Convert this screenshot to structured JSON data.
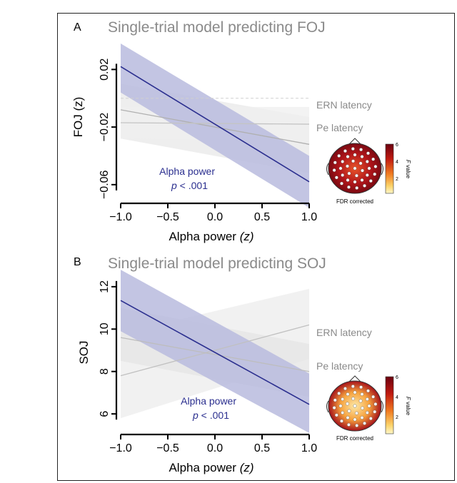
{
  "chart_data": [
    {
      "panel": "A",
      "type": "line",
      "title": "Single-trial model predicting FOJ",
      "xlabel_main": "Alpha power ",
      "xlabel_italic": "(z)",
      "ylabel": "FOJ (z)",
      "xlim": [
        -1.0,
        1.0
      ],
      "ylim": [
        -0.07,
        0.04
      ],
      "x_ticks": [
        -1.0,
        -0.5,
        0.0,
        0.5,
        1.0
      ],
      "x_tick_labels": [
        "−1.0",
        "−0.5",
        "0.0",
        "0.5",
        "1.0"
      ],
      "y_ticks": [
        0.02,
        -0.02,
        -0.06
      ],
      "y_tick_labels": [
        "0.02",
        "−0.02",
        "−0.06"
      ],
      "reference_line_y": 0.0,
      "series": [
        {
          "name": "Alpha power",
          "color": "#2b2f8f",
          "band": "#b9bbde",
          "x": [
            -1.0,
            1.0
          ],
          "y": [
            0.022,
            -0.058
          ],
          "lower": [
            0.004,
            -0.076
          ],
          "upper": [
            0.038,
            -0.04
          ]
        },
        {
          "name": "ERN latency",
          "color": "#b0b0b0",
          "band": "#e8e8e8",
          "x": [
            -1.0,
            1.0
          ],
          "y": [
            -0.008,
            -0.032
          ],
          "lower": [
            -0.028,
            -0.052
          ],
          "upper": [
            0.01,
            -0.013
          ]
        },
        {
          "name": "Pe latency",
          "color": "#c4c4c4",
          "band": "#efefef",
          "x": [
            -1.0,
            1.0
          ],
          "y": [
            -0.017,
            -0.018
          ],
          "lower": [
            -0.028,
            -0.03
          ],
          "upper": [
            -0.006,
            -0.006
          ]
        }
      ],
      "annotation": {
        "line1": "Alpha power",
        "p_label": "p",
        "p_value": " < .001"
      },
      "labels": {
        "ern": "ERN latency",
        "pe": "Pe latency"
      },
      "inset": {
        "colorbar_ticks": [
          "6",
          "4",
          "2"
        ],
        "colorbar_label_italic": "F",
        "colorbar_label": " value",
        "caption": "FDR corrected"
      }
    },
    {
      "panel": "B",
      "type": "line",
      "title": "Single-trial model predicting SOJ",
      "xlabel_main": "Alpha power ",
      "xlabel_italic": "(z)",
      "ylabel": "SOJ",
      "xlim": [
        -1.0,
        1.0
      ],
      "ylim": [
        5.5,
        12.5
      ],
      "x_ticks": [
        -1.0,
        -0.5,
        0.0,
        0.5,
        1.0
      ],
      "x_tick_labels": [
        "−1.0",
        "−0.5",
        "0.0",
        "0.5",
        "1.0"
      ],
      "y_ticks": [
        12,
        10,
        8,
        6
      ],
      "y_tick_labels": [
        "12",
        "10",
        "8",
        "6"
      ],
      "series": [
        {
          "name": "Alpha power",
          "color": "#2b2f8f",
          "band": "#b9bbde",
          "x": [
            -1.0,
            1.0
          ],
          "y": [
            11.35,
            6.45
          ],
          "lower": [
            9.9,
            5.1
          ],
          "upper": [
            12.8,
            7.9
          ]
        },
        {
          "name": "ERN latency",
          "color": "#c0c0c0",
          "band": "#ececec",
          "x": [
            -1.0,
            1.0
          ],
          "y": [
            7.8,
            10.2
          ],
          "lower": [
            5.8,
            8.6
          ],
          "upper": [
            9.8,
            11.9
          ]
        },
        {
          "name": "Pe latency",
          "color": "#bdbdbd",
          "band": "#e4e4e4",
          "x": [
            -1.0,
            1.0
          ],
          "y": [
            9.6,
            8.0
          ],
          "lower": [
            8.5,
            6.8
          ],
          "upper": [
            11.0,
            9.3
          ]
        }
      ],
      "annotation": {
        "line1": "Alpha power",
        "p_label": "p",
        "p_value": " < .001"
      },
      "labels": {
        "ern": "ERN latency",
        "pe": "Pe latency"
      },
      "inset": {
        "colorbar_ticks": [
          "6",
          "4",
          "2"
        ],
        "colorbar_label_italic": "F",
        "colorbar_label": " value",
        "caption": "FDR corrected"
      }
    }
  ]
}
